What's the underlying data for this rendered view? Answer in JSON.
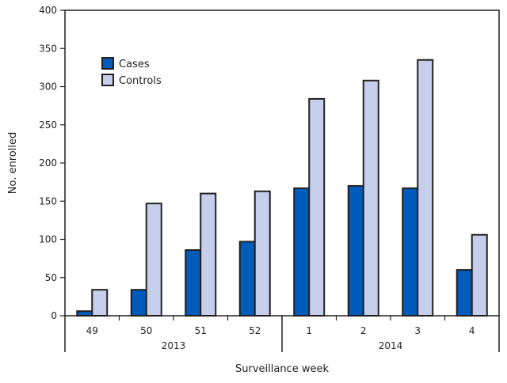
{
  "chart_data": {
    "type": "bar",
    "title": "",
    "xlabel": "Surveillance week",
    "ylabel": "No. enrolled",
    "ylim": [
      0,
      400
    ],
    "yticks": [
      0,
      50,
      100,
      150,
      200,
      250,
      300,
      350,
      400
    ],
    "grid": false,
    "legend_position": "top-left",
    "categories": [
      "49",
      "50",
      "51",
      "52",
      "1",
      "2",
      "3",
      "4"
    ],
    "year_groups": [
      {
        "label": "2013",
        "categories": [
          "49",
          "50",
          "51",
          "52"
        ]
      },
      {
        "label": "2014",
        "categories": [
          "1",
          "2",
          "3",
          "4"
        ]
      }
    ],
    "series": [
      {
        "name": "Cases",
        "color": "#005bbb",
        "values": [
          6,
          34,
          86,
          97,
          167,
          170,
          167,
          60
        ]
      },
      {
        "name": "Controls",
        "color": "#c5cfec",
        "values": [
          34,
          147,
          160,
          163,
          284,
          308,
          335,
          106
        ]
      }
    ]
  }
}
